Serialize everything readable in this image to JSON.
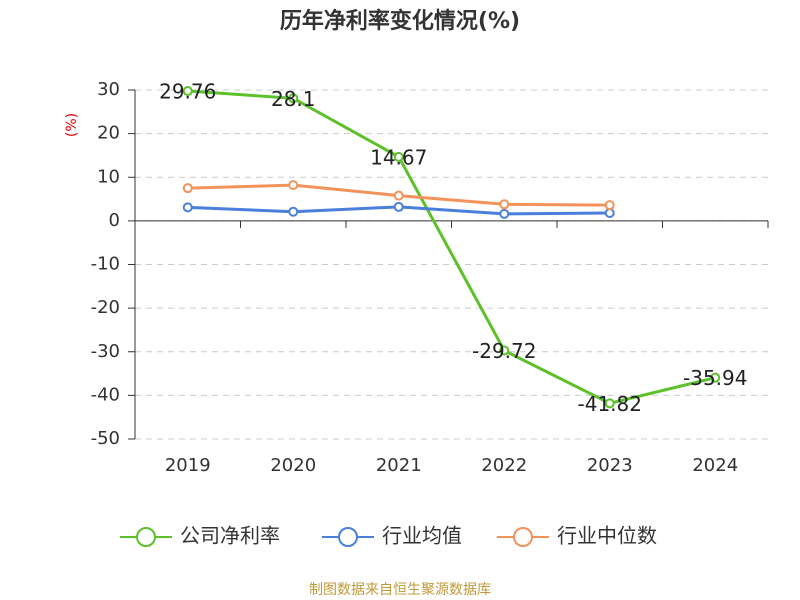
{
  "chart_data": {
    "type": "line",
    "title": "历年净利率变化情况(%)",
    "y_label": "(%)",
    "categories": [
      "2019",
      "2020",
      "2021",
      "2022",
      "2023",
      "2024"
    ],
    "series": [
      {
        "name": "公司净利率",
        "color": "#5cc12a",
        "values": [
          29.76,
          28.1,
          14.67,
          -29.72,
          -41.82,
          -35.94
        ],
        "labels": true
      },
      {
        "name": "行业均值",
        "color": "#4a7fdc",
        "values": [
          3.1,
          2.1,
          3.2,
          1.6,
          1.8,
          null
        ]
      },
      {
        "name": "行业中位数",
        "color": "#f3925a",
        "values": [
          7.5,
          8.2,
          5.8,
          3.8,
          3.6,
          null
        ]
      }
    ],
    "ylim": [
      -50,
      30
    ],
    "yticks": [
      -50,
      -40,
      -30,
      -20,
      -10,
      0,
      10,
      20,
      30
    ],
    "grid": true,
    "source": "制图数据来自恒生聚源数据库"
  }
}
